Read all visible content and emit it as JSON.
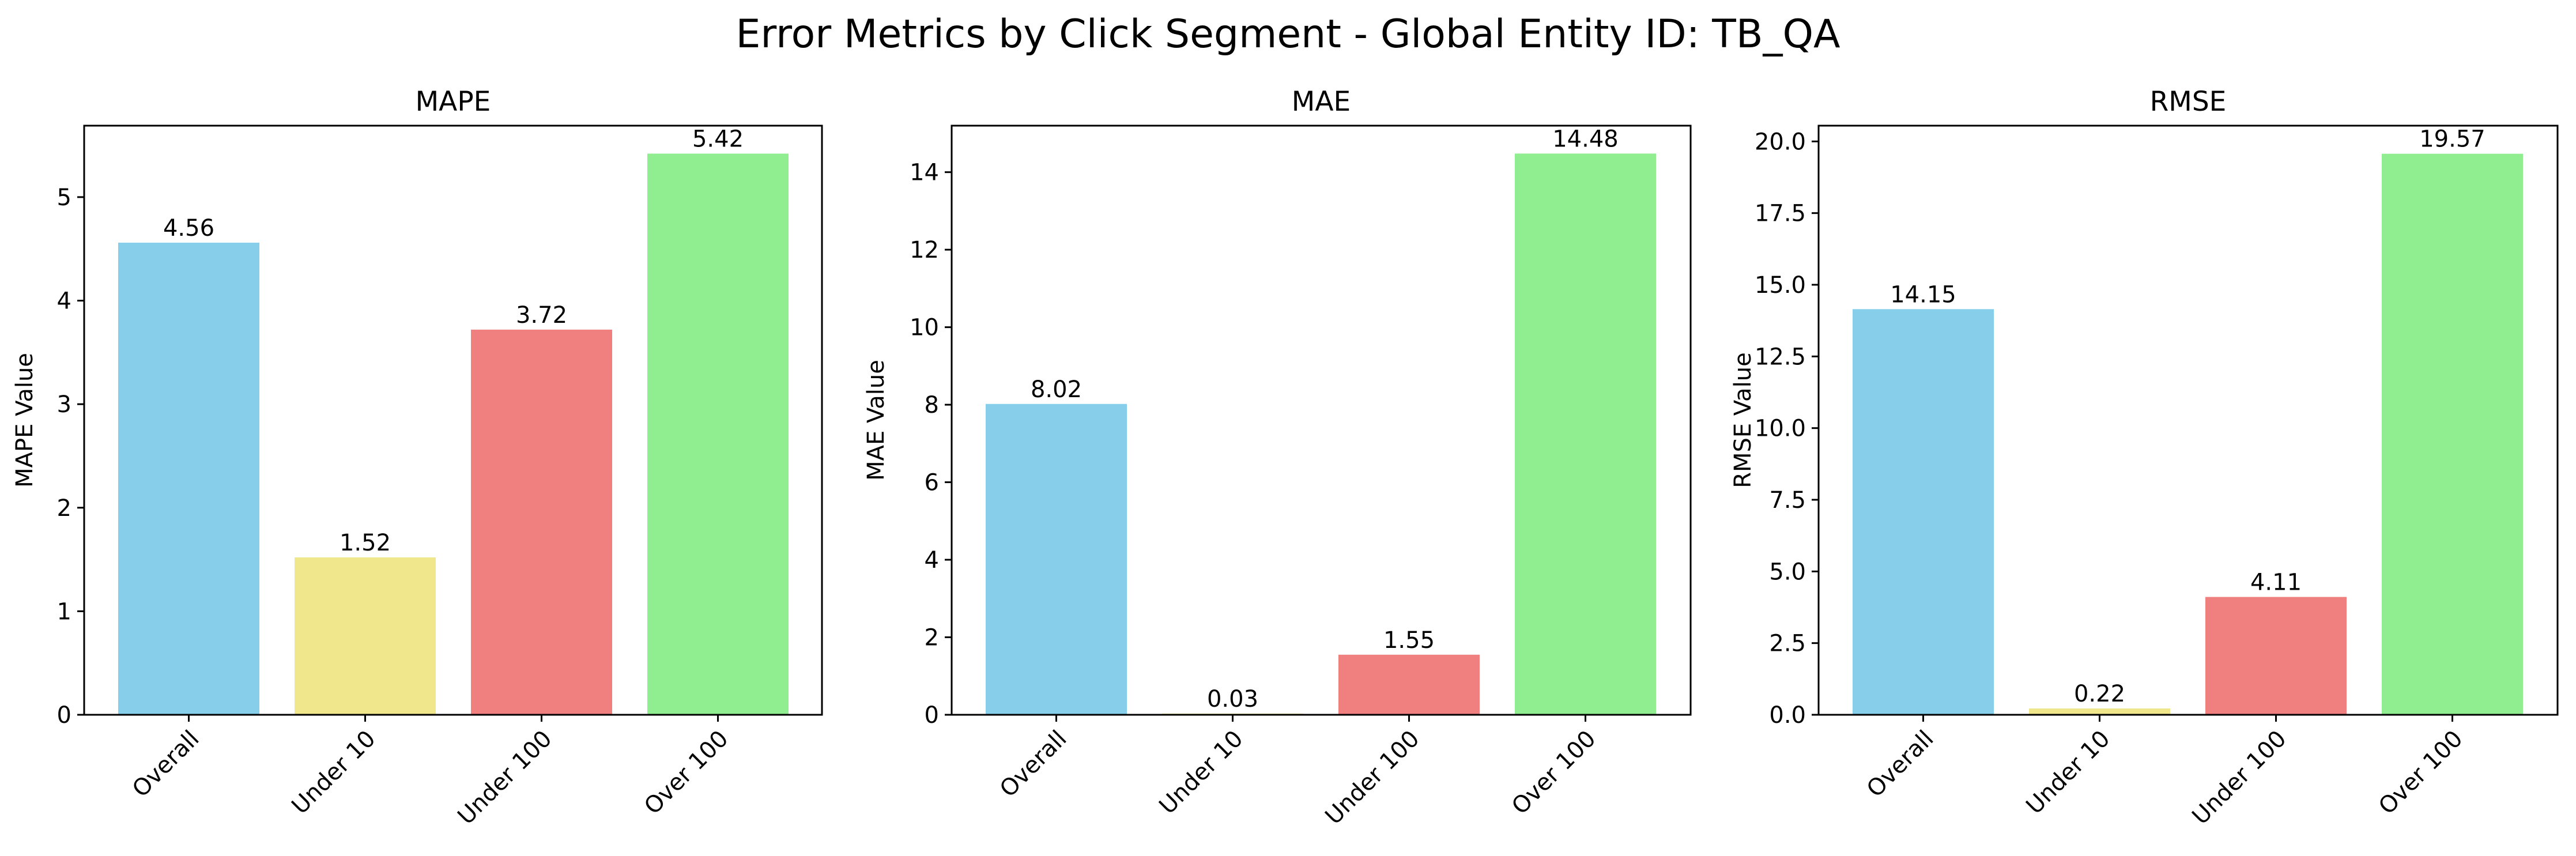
{
  "figure": {
    "title": "Error Metrics by Click Segment - Global Entity ID: TB_QA"
  },
  "chart_data": [
    {
      "type": "bar",
      "title": "MAPE",
      "xlabel": "",
      "ylabel": "MAPE Value",
      "categories": [
        "Overall",
        "Under 10",
        "Under 100",
        "Over 100"
      ],
      "values": [
        4.56,
        1.52,
        3.72,
        5.42
      ],
      "value_labels": [
        "4.56",
        "1.52",
        "3.72",
        "5.42"
      ],
      "colors": [
        "#87ceeb",
        "#f0e68c",
        "#f08080",
        "#90ee90"
      ],
      "ylim": [
        0,
        5.69
      ],
      "yticks": [
        0,
        1,
        2,
        3,
        4,
        5
      ],
      "ytick_labels": [
        "0",
        "1",
        "2",
        "3",
        "4",
        "5"
      ],
      "grid": false,
      "legend": "none"
    },
    {
      "type": "bar",
      "title": "MAE",
      "xlabel": "",
      "ylabel": "MAE Value",
      "categories": [
        "Overall",
        "Under 10",
        "Under 100",
        "Over 100"
      ],
      "values": [
        8.02,
        0.03,
        1.55,
        14.48
      ],
      "value_labels": [
        "8.02",
        "0.03",
        "1.55",
        "14.48"
      ],
      "colors": [
        "#87ceeb",
        "#f0e68c",
        "#f08080",
        "#90ee90"
      ],
      "ylim": [
        0,
        15.2
      ],
      "yticks": [
        0,
        2,
        4,
        6,
        8,
        10,
        12,
        14
      ],
      "ytick_labels": [
        "0",
        "2",
        "4",
        "6",
        "8",
        "10",
        "12",
        "14"
      ],
      "grid": false,
      "legend": "none"
    },
    {
      "type": "bar",
      "title": "RMSE",
      "xlabel": "",
      "ylabel": "RMSE Value",
      "categories": [
        "Overall",
        "Under 10",
        "Under 100",
        "Over 100"
      ],
      "values": [
        14.15,
        0.22,
        4.11,
        19.57
      ],
      "value_labels": [
        "14.15",
        "0.22",
        "4.11",
        "19.57"
      ],
      "colors": [
        "#87ceeb",
        "#f0e68c",
        "#f08080",
        "#90ee90"
      ],
      "ylim": [
        0,
        20.55
      ],
      "yticks": [
        0,
        2.5,
        5,
        7.5,
        10,
        12.5,
        15,
        17.5,
        20
      ],
      "ytick_labels": [
        "0.0",
        "2.5",
        "5.0",
        "7.5",
        "10.0",
        "12.5",
        "15.0",
        "17.5",
        "20.0"
      ],
      "grid": false,
      "legend": "none"
    }
  ]
}
